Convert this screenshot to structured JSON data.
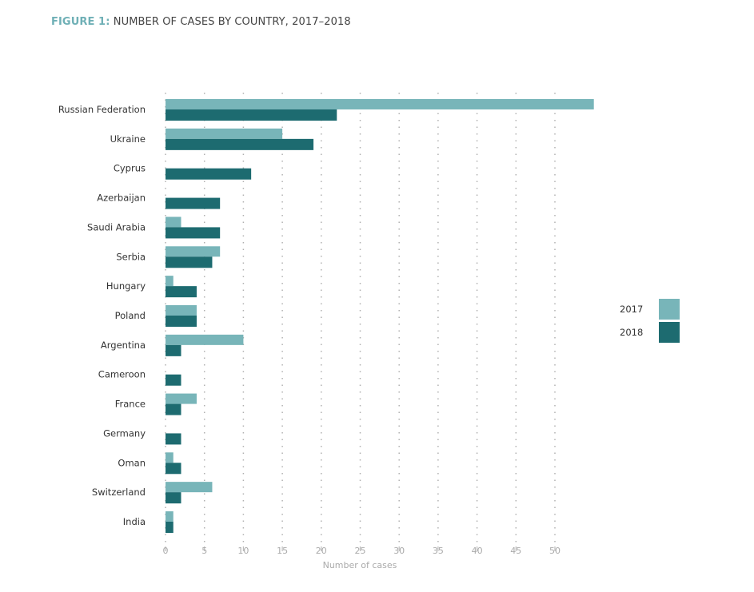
{
  "chart_data": {
    "type": "bar",
    "orientation": "horizontal",
    "title_prefix": "FIGURE 1:",
    "title": "NUMBER OF CASES BY COUNTRY, 2017–2018",
    "xlabel": "Number of cases",
    "ylabel": "",
    "xlim": [
      0,
      55
    ],
    "xticks": [
      0,
      5,
      10,
      15,
      20,
      25,
      30,
      35,
      40,
      45,
      50
    ],
    "grid": "vertical dotted",
    "legend_position": "right",
    "categories": [
      "Russian Federation",
      "Ukraine",
      "Cyprus",
      "Azerbaijan",
      "Saudi Arabia",
      "Serbia",
      "Hungary",
      "Poland",
      "Argentina",
      "Cameroon",
      "France",
      "Germany",
      "Oman",
      "Switzerland",
      "India"
    ],
    "series": [
      {
        "name": "2017",
        "color": "#78b5b9",
        "values": [
          55,
          15,
          0,
          0,
          2,
          7,
          1,
          4,
          10,
          0,
          4,
          0,
          1,
          6,
          1
        ]
      },
      {
        "name": "2018",
        "color": "#1d6b70",
        "values": [
          22,
          19,
          11,
          7,
          7,
          6,
          4,
          4,
          2,
          2,
          2,
          2,
          2,
          2,
          1
        ]
      }
    ]
  }
}
